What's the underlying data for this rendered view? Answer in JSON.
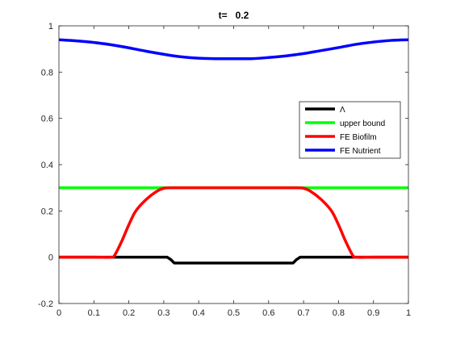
{
  "chart_data": {
    "type": "line",
    "title": "t=   0.2",
    "xlabel": "",
    "ylabel": "",
    "xlim": [
      0,
      1
    ],
    "ylim": [
      -0.2,
      1
    ],
    "x_ticks": [
      0,
      0.1,
      0.2,
      0.3,
      0.4,
      0.5,
      0.6,
      0.7,
      0.8,
      0.9,
      1
    ],
    "x_tick_labels": [
      "0",
      "0.1",
      "0.2",
      "0.3",
      "0.4",
      "0.5",
      "0.6",
      "0.7",
      "0.8",
      "0.9",
      "1"
    ],
    "y_ticks": [
      -0.2,
      0,
      0.2,
      0.4,
      0.6,
      0.8,
      1
    ],
    "y_tick_labels": [
      "-0.2",
      "0",
      "0.2",
      "0.4",
      "0.6",
      "0.8",
      "1"
    ],
    "grid": false,
    "legend_position": "right",
    "series": [
      {
        "name": "Λ",
        "color": "#000000",
        "x": [
          0,
          0.1,
          0.2,
          0.3,
          0.31,
          0.32,
          0.33,
          0.4,
          0.5,
          0.6,
          0.67,
          0.68,
          0.69,
          0.7,
          0.8,
          0.9,
          1
        ],
        "y": [
          0,
          0,
          0,
          0,
          0,
          -0.01,
          -0.025,
          -0.025,
          -0.025,
          -0.025,
          -0.025,
          -0.01,
          0,
          0,
          0,
          0,
          0
        ]
      },
      {
        "name": "upper bound",
        "color": "#00ff00",
        "x": [
          0,
          1
        ],
        "y": [
          0.3,
          0.3
        ]
      },
      {
        "name": "FE Biofilm",
        "color": "#ff0000",
        "x": [
          0,
          0.1,
          0.15,
          0.16,
          0.18,
          0.2,
          0.22,
          0.25,
          0.28,
          0.3,
          0.32,
          0.4,
          0.5,
          0.6,
          0.68,
          0.7,
          0.72,
          0.75,
          0.78,
          0.8,
          0.82,
          0.84,
          0.85,
          0.9,
          1
        ],
        "y": [
          0,
          0,
          0,
          0.01,
          0.07,
          0.14,
          0.2,
          0.25,
          0.285,
          0.298,
          0.3,
          0.3,
          0.3,
          0.3,
          0.3,
          0.298,
          0.285,
          0.25,
          0.2,
          0.14,
          0.07,
          0.01,
          0,
          0,
          0
        ]
      },
      {
        "name": "FE Nutrient",
        "color": "#0000ff",
        "x": [
          0,
          0.05,
          0.1,
          0.15,
          0.2,
          0.25,
          0.3,
          0.35,
          0.4,
          0.45,
          0.5,
          0.55,
          0.6,
          0.65,
          0.7,
          0.75,
          0.8,
          0.85,
          0.9,
          0.95,
          1
        ],
        "y": [
          0.94,
          0.935,
          0.928,
          0.918,
          0.905,
          0.89,
          0.877,
          0.866,
          0.86,
          0.858,
          0.858,
          0.858,
          0.863,
          0.87,
          0.88,
          0.893,
          0.906,
          0.92,
          0.93,
          0.937,
          0.94
        ]
      }
    ]
  }
}
